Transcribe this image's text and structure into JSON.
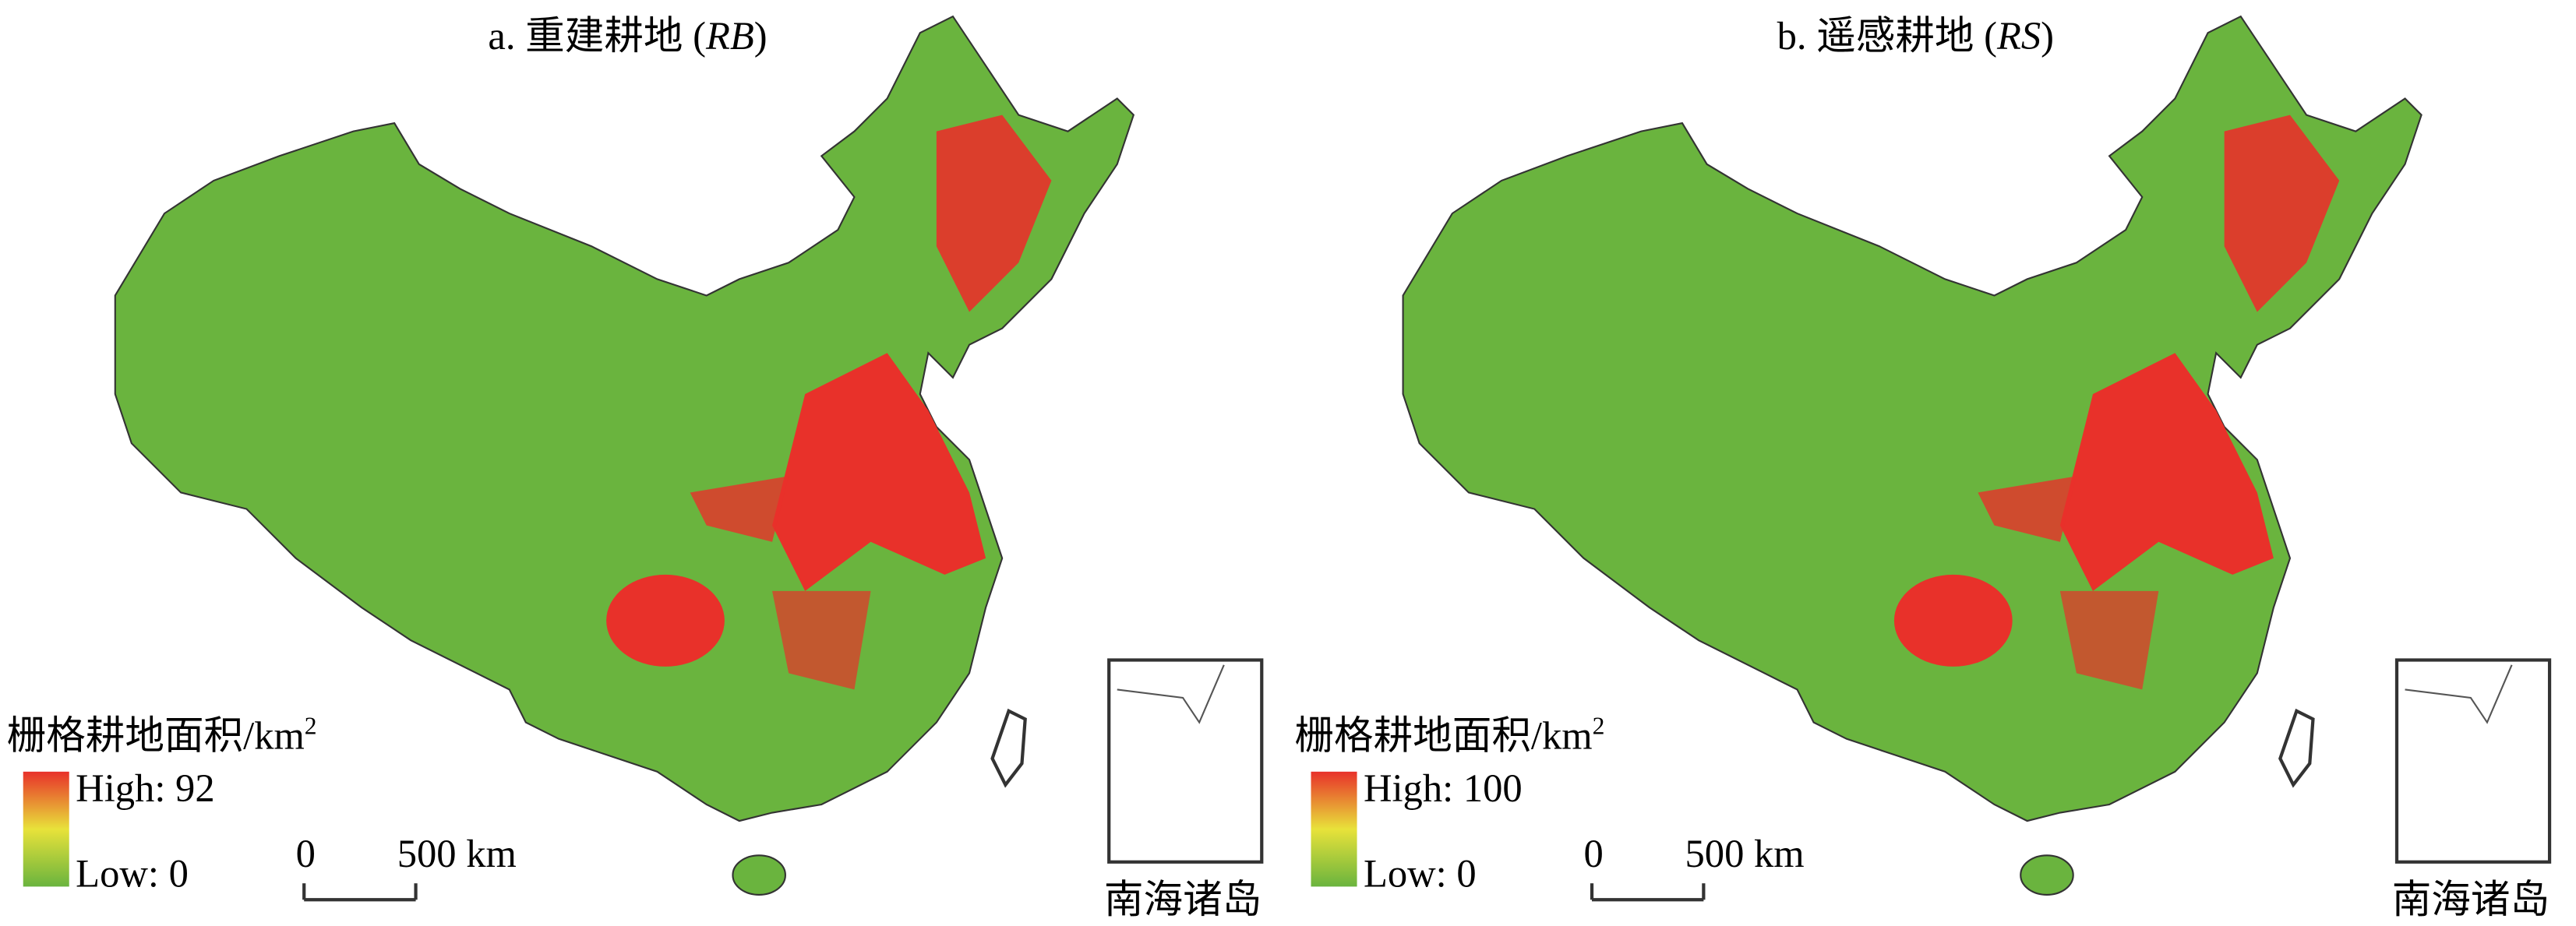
{
  "panels": [
    {
      "title": {
        "prefix": "a. 重建耕地 (",
        "abbr": "RB",
        "suffix": ")"
      },
      "legend": {
        "title": "栅格耕地面积/km",
        "title_sup": "2",
        "high": "High: 92",
        "low": "Low: 0"
      },
      "scale": {
        "start": "0",
        "end": "500 km"
      },
      "inset_label": "南海诸岛"
    },
    {
      "title": {
        "prefix": "b. 遥感耕地 (",
        "abbr": "RS",
        "suffix": ")"
      },
      "legend": {
        "title": "栅格耕地面积/km",
        "title_sup": "2",
        "high": "High: 100",
        "low": "Low: 0"
      },
      "scale": {
        "start": "0",
        "end": "500 km"
      },
      "inset_label": "南海诸岛"
    }
  ]
}
